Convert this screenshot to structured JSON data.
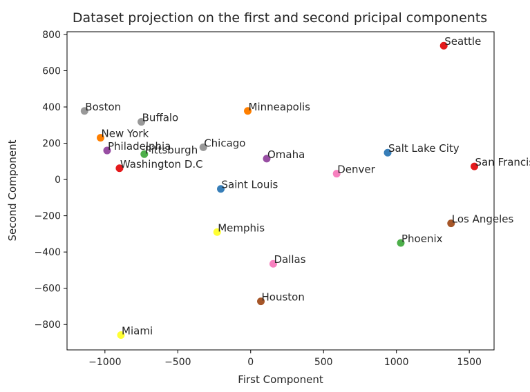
{
  "chart_data": {
    "type": "scatter",
    "title": "Dataset projection on the first and second pricipal components",
    "xlabel": "First Component",
    "ylabel": "Second Component",
    "xlim": [
      -1260,
      1670
    ],
    "ylim": [
      -940,
      815
    ],
    "xticks": [
      -1000,
      -500,
      0,
      500,
      1000,
      1500
    ],
    "yticks": [
      -800,
      -600,
      -400,
      -200,
      0,
      200,
      400,
      600,
      800
    ],
    "xtick_labels": [
      "−1000",
      "−500",
      "0",
      "500",
      "1000",
      "1500"
    ],
    "ytick_labels": [
      "−800",
      "−600",
      "−400",
      "−200",
      "0",
      "200",
      "400",
      "600",
      "800"
    ],
    "grid": false,
    "points": [
      {
        "label": "Seattle",
        "x": 1325,
        "y": 738,
        "color": "#e41a1c"
      },
      {
        "label": "Boston",
        "x": -1140,
        "y": 378,
        "color": "#999999"
      },
      {
        "label": "Buffalo",
        "x": -750,
        "y": 318,
        "color": "#999999"
      },
      {
        "label": "Minneapolis",
        "x": -20,
        "y": 378,
        "color": "#ff7f00"
      },
      {
        "label": "New York",
        "x": -1030,
        "y": 230,
        "color": "#ff7f00"
      },
      {
        "label": "Chicago",
        "x": -325,
        "y": 178,
        "color": "#999999"
      },
      {
        "label": "Philadelphia",
        "x": -985,
        "y": 160,
        "color": "#984ea3"
      },
      {
        "label": "Pittsburgh",
        "x": -730,
        "y": 140,
        "color": "#4daf4a"
      },
      {
        "label": "Omaha",
        "x": 110,
        "y": 115,
        "color": "#984ea3"
      },
      {
        "label": "Salt Lake City",
        "x": 940,
        "y": 148,
        "color": "#377eb8"
      },
      {
        "label": "Washington D.C",
        "x": -900,
        "y": 62,
        "color": "#e41a1c"
      },
      {
        "label": "San Francisco",
        "x": 1535,
        "y": 72,
        "color": "#e41a1c"
      },
      {
        "label": "Denver",
        "x": 590,
        "y": 32,
        "color": "#f781bf"
      },
      {
        "label": "Saint Louis",
        "x": -205,
        "y": -52,
        "color": "#377eb8"
      },
      {
        "label": "Los Angeles",
        "x": 1375,
        "y": -242,
        "color": "#a65628"
      },
      {
        "label": "Memphis",
        "x": -230,
        "y": -290,
        "color": "#ffff33"
      },
      {
        "label": "Phoenix",
        "x": 1030,
        "y": -350,
        "color": "#4daf4a"
      },
      {
        "label": "Dallas",
        "x": 155,
        "y": -465,
        "color": "#f781bf"
      },
      {
        "label": "Houston",
        "x": 70,
        "y": -672,
        "color": "#a65628"
      },
      {
        "label": "Miami",
        "x": -890,
        "y": -858,
        "color": "#ffff33"
      }
    ]
  }
}
